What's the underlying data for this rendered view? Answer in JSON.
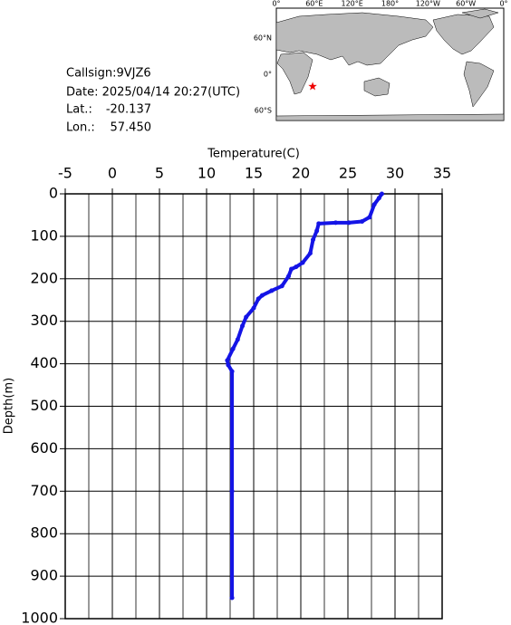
{
  "chart_data": {
    "type": "line",
    "x_label": "Temperature(C)",
    "y_label": "Depth(m)",
    "xlim": [
      -5,
      35
    ],
    "xticks": [
      -5,
      0,
      5,
      10,
      15,
      20,
      25,
      30,
      35
    ],
    "ylim": [
      0,
      1000
    ],
    "y_inverted": true,
    "yticks": [
      0,
      100,
      200,
      300,
      400,
      500,
      600,
      700,
      800,
      900,
      1000
    ],
    "grid": true,
    "series": [
      {
        "color": "#1414e6",
        "x": [
          28.6,
          28.3,
          27.8,
          27.3,
          26.5,
          25.1,
          23.7,
          21.9,
          21.7,
          21.3,
          21.0,
          20.2,
          19.5,
          19.0,
          18.7,
          18.0,
          16.9,
          15.9,
          15.5,
          15.0,
          14.2,
          13.8,
          13.3,
          12.8,
          12.2,
          12.3,
          12.7,
          12.7,
          12.7
        ],
        "values": [
          0,
          10,
          25,
          55,
          65,
          68,
          68,
          70,
          87,
          108,
          140,
          162,
          172,
          177,
          194,
          217,
          228,
          239,
          247,
          269,
          290,
          311,
          343,
          365,
          392,
          403,
          418,
          700,
          951
        ]
      }
    ]
  },
  "info": {
    "callsign": "Callsign:9VJZ6",
    "date": "Date:  2025/04/14 20:27(UTC)",
    "lat_label": "Lat.:",
    "lat": -20.137,
    "lon_label": "Lon.:",
    "lon": {
      "value": 57.45,
      "label": "57.450"
    }
  },
  "map": {
    "lon_ticks": [
      {
        "value": 0,
        "label": "0°"
      },
      {
        "value": 60,
        "label": "60°E"
      },
      {
        "value": 120,
        "label": "120°E"
      },
      {
        "value": 180,
        "label": "180°"
      },
      {
        "value": 240,
        "label": "120°W"
      },
      {
        "value": 300,
        "label": "60°W"
      },
      {
        "value": 360,
        "label": "0°"
      }
    ],
    "lat_ticks": [
      {
        "value": 60,
        "label": "60°N"
      },
      {
        "value": 0,
        "label": "0°"
      },
      {
        "value": -60,
        "label": "60°S"
      }
    ]
  }
}
